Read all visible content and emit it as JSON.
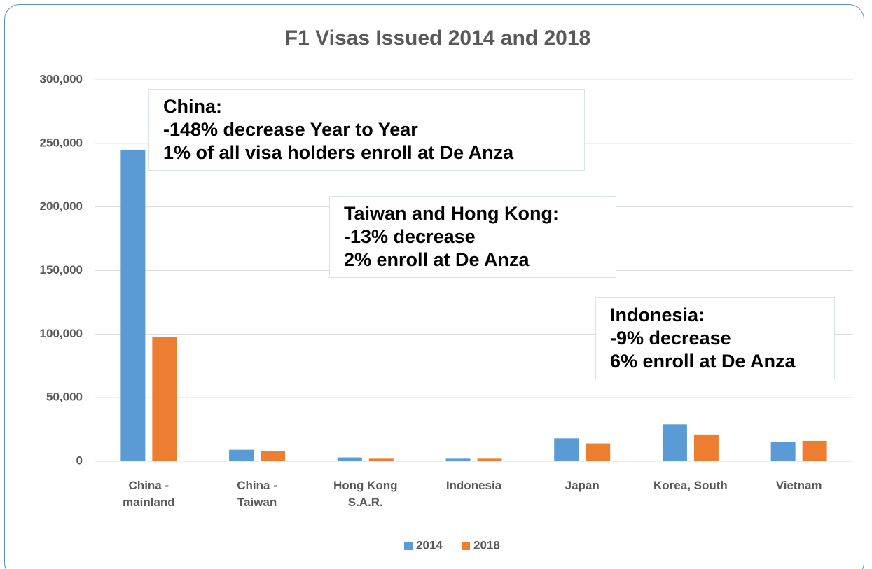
{
  "chart_data": {
    "type": "bar",
    "title": "F1 Visas Issued 2014 and 2018",
    "categories": [
      "China - mainland",
      "China - Taiwan",
      "Hong Kong S.A.R.",
      "Indonesia",
      "Japan",
      "Korea, South",
      "Vietnam"
    ],
    "series": [
      {
        "name": "2014",
        "color": "#5b9bd5",
        "values": [
          245000,
          9000,
          3000,
          2000,
          18000,
          29000,
          15000
        ]
      },
      {
        "name": "2018",
        "color": "#ed7d31",
        "values": [
          98000,
          8000,
          2000,
          2000,
          14000,
          21000,
          16000
        ]
      }
    ],
    "ylim": [
      0,
      300000
    ],
    "yticks": [
      0,
      {
        "value": 50000,
        "label": "50,000"
      },
      {
        "value": 100000,
        "label": "100,000"
      },
      {
        "value": 150000,
        "label": "150,000"
      },
      {
        "value": 200000,
        "label": "200,000"
      },
      {
        "value": 250000,
        "label": "250,000"
      },
      {
        "value": 300000,
        "label": "300,000"
      }
    ],
    "grid": true,
    "legend": "bottom",
    "annotations": [
      {
        "lines": [
          "China:",
          "-148% decrease Year to Year",
          "1% of all visa holders enroll at De Anza"
        ]
      },
      {
        "lines": [
          "Taiwan and Hong Kong:",
          "-13% decrease",
          "2% enroll at De Anza"
        ]
      },
      {
        "lines": [
          "Indonesia:",
          "-9% decrease",
          "6% enroll at De Anza"
        ]
      }
    ]
  }
}
